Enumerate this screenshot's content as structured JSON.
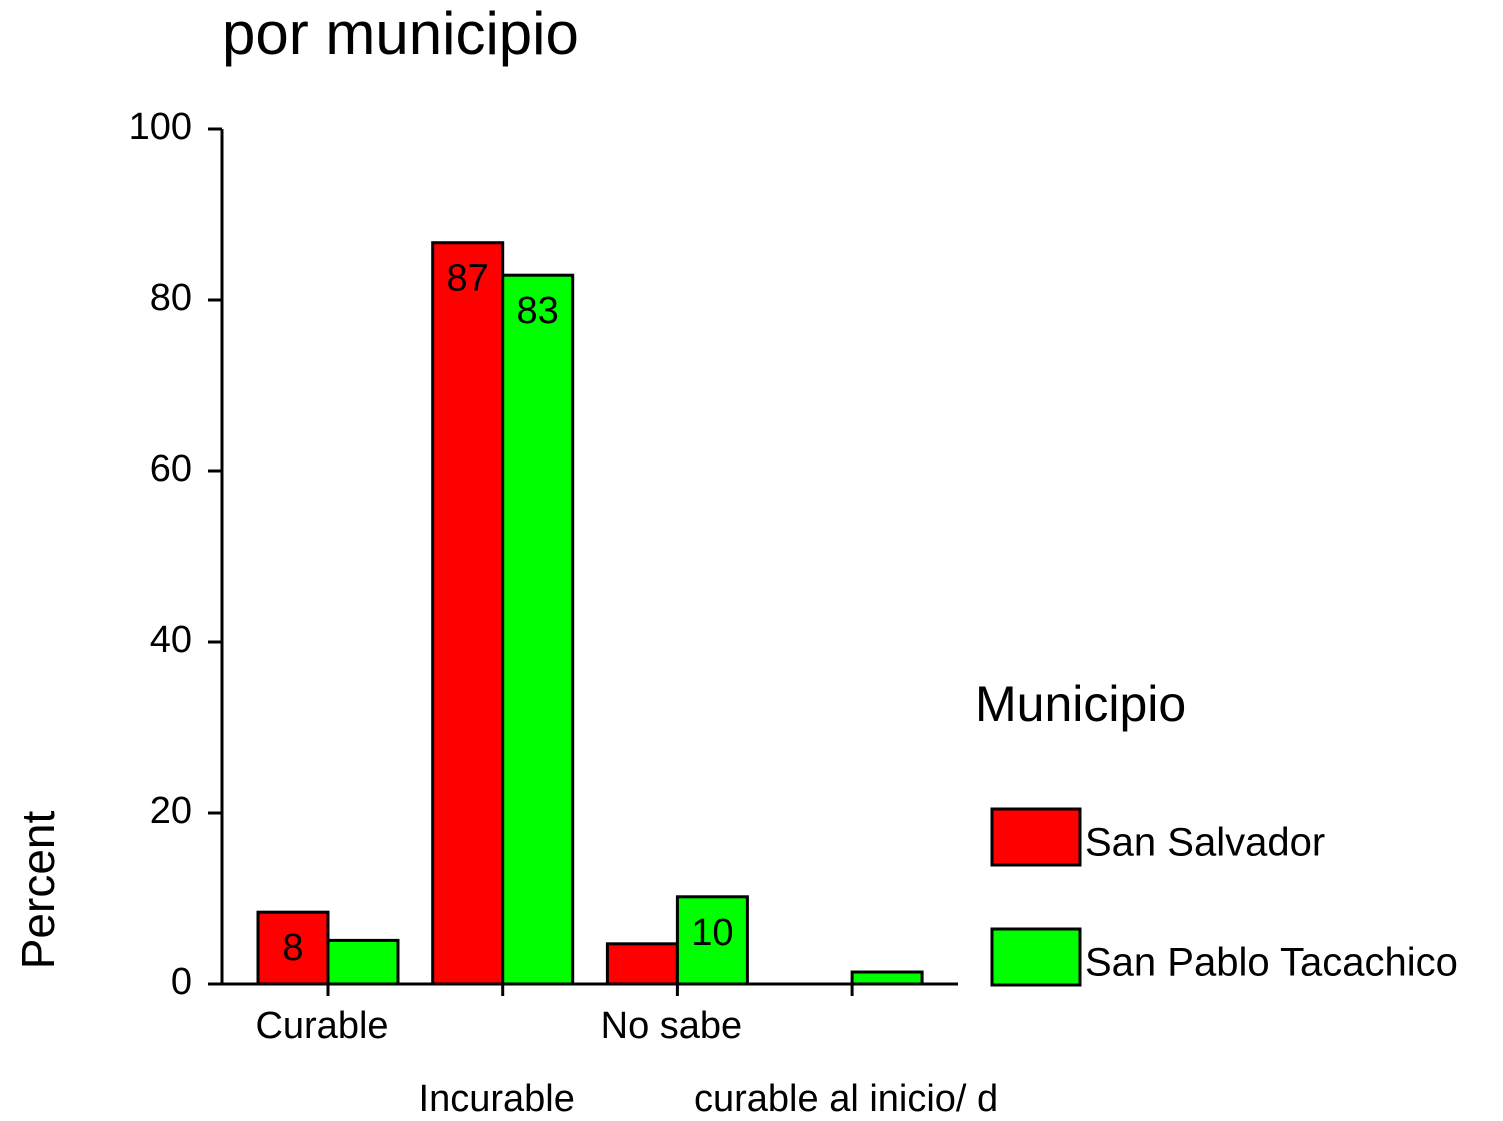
{
  "chart_data": {
    "type": "bar",
    "title": "por municipio",
    "y_label": "Percent",
    "categories": [
      "Curable",
      "Incurable",
      "No sabe",
      "curable al inicio/ d"
    ],
    "series": [
      {
        "name": "San Salvador",
        "color": "#ff0000",
        "values": [
          8.4,
          86.7,
          4.7,
          0
        ],
        "value_labels": [
          "8",
          "87",
          null,
          null
        ]
      },
      {
        "name": "San Pablo Tacachico",
        "color": "#00ff00",
        "values": [
          5.1,
          82.9,
          10.2,
          1.4
        ],
        "value_labels": [
          null,
          "83",
          "10",
          null
        ]
      }
    ],
    "ylim": [
      0,
      100
    ],
    "yticks": [
      0,
      20,
      40,
      60,
      80,
      100
    ],
    "legend_title": "Municipio",
    "legend": "right"
  }
}
